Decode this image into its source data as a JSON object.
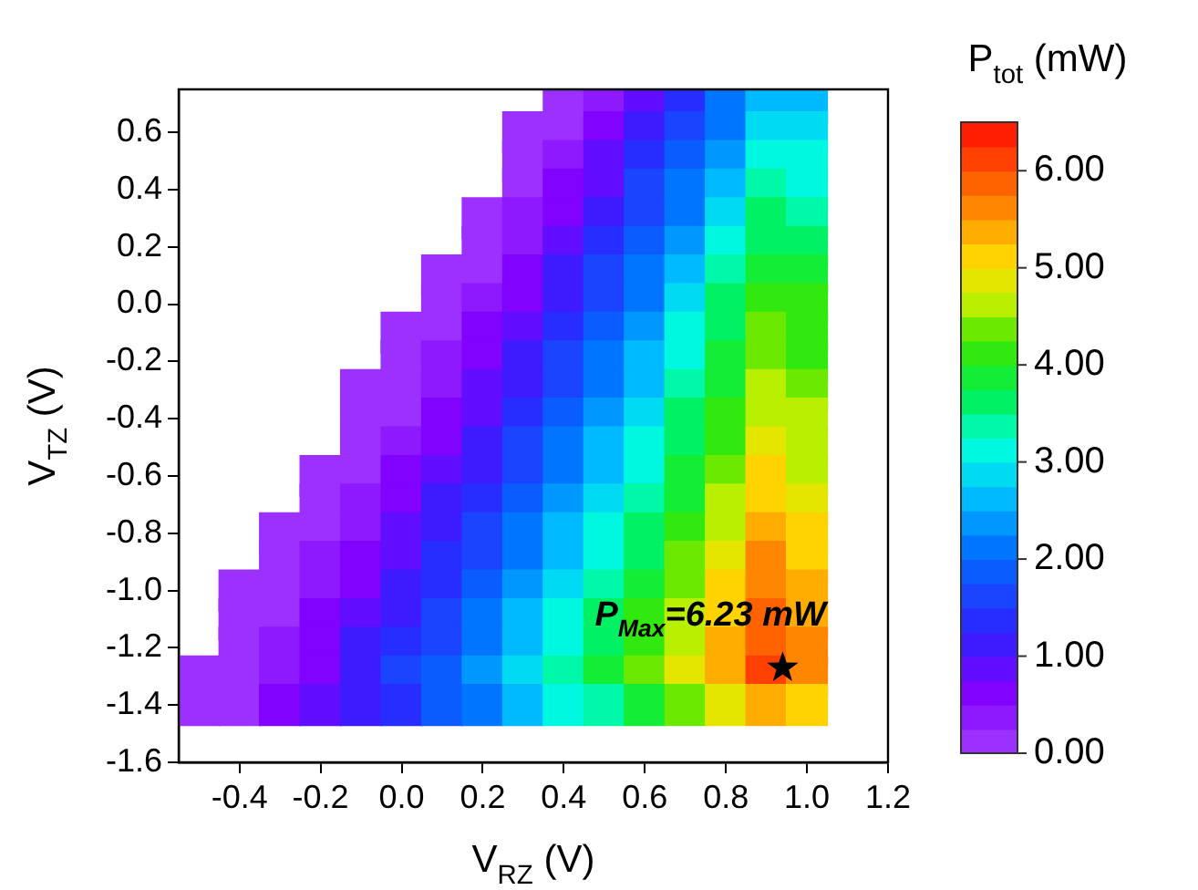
{
  "chart_data": {
    "type": "scatter",
    "xlabel": "V$_{RZ}$ (V)",
    "ylabel": "V$_{TZ}$ (V)",
    "clabel": "P$_{tot}$ (mW)",
    "xlim": [
      -0.55,
      1.2
    ],
    "xticks": [
      -0.4,
      -0.2,
      {
        "value": 0,
        "label": "0.0"
      },
      0.2,
      0.4,
      0.6,
      0.8,
      {
        "value": 1,
        "label": "1.0"
      },
      1.2
    ],
    "ylim": [
      -1.6,
      0.75
    ],
    "yticks": [
      -1.6,
      -1.4,
      -1.2,
      {
        "value": -1,
        "label": "-1.0"
      },
      -0.8,
      -0.6,
      -0.4,
      -0.2,
      {
        "value": 0,
        "label": "0.0"
      },
      0.2,
      0.4,
      0.6
    ],
    "clim": [
      0,
      6.5
    ],
    "cticks": [
      {
        "value": 0,
        "label": "0.00"
      },
      {
        "value": 1,
        "label": "1.00"
      },
      {
        "value": 2,
        "label": "2.00"
      },
      {
        "value": 3,
        "label": "3.00"
      },
      {
        "value": 4,
        "label": "4.00"
      },
      {
        "value": 5,
        "label": "5.00"
      },
      {
        "value": 6,
        "label": "6.00"
      }
    ],
    "grid": false,
    "legend": false,
    "marker": "square",
    "annotations": [
      {
        "text": "P$_{Max}$=6.23 mW",
        "x": 0.94,
        "y": -1.27
      }
    ],
    "series": [
      {
        "x": [
          0.4,
          0.5,
          0.6,
          0.7,
          0.8,
          0.9,
          1.0,
          0.3,
          0.4,
          0.5,
          0.6,
          0.7,
          0.8,
          0.9,
          1.0,
          0.3,
          0.4,
          0.5,
          0.6,
          0.7,
          0.8,
          0.9,
          1.0,
          0.3,
          0.4,
          0.5,
          0.6,
          0.7,
          0.8,
          0.9,
          1.0,
          0.2,
          0.3,
          0.4,
          0.5,
          0.6,
          0.7,
          0.8,
          0.9,
          1.0,
          0.2,
          0.3,
          0.4,
          0.5,
          0.6,
          0.7,
          0.8,
          0.9,
          1.0,
          0.1,
          0.2,
          0.3,
          0.4,
          0.5,
          0.6,
          0.7,
          0.8,
          0.9,
          1.0,
          0.1,
          0.2,
          0.3,
          0.4,
          0.5,
          0.6,
          0.7,
          0.8,
          0.9,
          1.0,
          0.0,
          0.1,
          0.2,
          0.3,
          0.4,
          0.5,
          0.6,
          0.7,
          0.8,
          0.9,
          1.0,
          0.0,
          0.1,
          0.2,
          0.3,
          0.4,
          0.5,
          0.6,
          0.7,
          0.8,
          0.9,
          1.0,
          -0.1,
          0.0,
          0.1,
          0.2,
          0.3,
          0.4,
          0.5,
          0.6,
          0.7,
          0.8,
          0.9,
          1.0,
          -0.1,
          0.0,
          0.1,
          0.2,
          0.3,
          0.4,
          0.5,
          0.6,
          0.7,
          0.8,
          0.9,
          1.0,
          -0.1,
          0.0,
          0.1,
          0.2,
          0.3,
          0.4,
          0.5,
          0.6,
          0.7,
          0.8,
          0.9,
          1.0,
          -0.2,
          -0.1,
          0.0,
          0.1,
          0.2,
          0.3,
          0.4,
          0.5,
          0.6,
          0.7,
          0.8,
          0.9,
          1.0,
          -0.2,
          -0.1,
          0.0,
          0.1,
          0.2,
          0.3,
          0.4,
          0.5,
          0.6,
          0.7,
          0.8,
          0.9,
          1.0,
          -0.3,
          -0.2,
          -0.1,
          0.0,
          0.1,
          0.2,
          0.3,
          0.4,
          0.5,
          0.6,
          0.7,
          0.8,
          0.9,
          1.0,
          -0.3,
          -0.2,
          -0.1,
          0.0,
          0.1,
          0.2,
          0.3,
          0.4,
          0.5,
          0.6,
          0.7,
          0.8,
          0.9,
          1.0,
          -0.4,
          -0.3,
          -0.2,
          -0.1,
          0.0,
          0.1,
          0.2,
          0.3,
          0.4,
          0.5,
          0.6,
          0.7,
          0.8,
          0.9,
          1.0,
          -0.4,
          -0.3,
          -0.2,
          -0.1,
          0.0,
          0.1,
          0.2,
          0.3,
          0.4,
          0.5,
          0.6,
          0.7,
          0.8,
          0.9,
          1.0,
          -0.4,
          -0.3,
          -0.2,
          -0.1,
          0.0,
          0.1,
          0.2,
          0.3,
          0.4,
          0.5,
          0.6,
          0.7,
          0.8,
          0.9,
          1.0,
          -0.5,
          -0.4,
          -0.3,
          -0.2,
          -0.1,
          0.0,
          0.1,
          0.2,
          0.3,
          0.4,
          0.5,
          0.6,
          0.7,
          0.8,
          0.9,
          1.0,
          -0.5,
          -0.4,
          -0.3,
          -0.2,
          -0.1,
          0.0,
          0.1,
          0.2,
          0.3,
          0.4,
          0.5,
          0.6,
          0.7,
          0.8,
          0.9,
          1.0
        ],
        "values": [
          0.7,
          0.7,
          0.7,
          0.7,
          0.7,
          0.7,
          0.7,
          0.6,
          0.6,
          0.6,
          0.6,
          0.6,
          0.6,
          0.6,
          0.6,
          0.5,
          0.5,
          0.5,
          0.5,
          0.5,
          0.5,
          0.5,
          0.5,
          0.4,
          0.4,
          0.4,
          0.4,
          0.4,
          0.4,
          0.4,
          0.4,
          0.3,
          0.3,
          0.3,
          0.3,
          0.3,
          0.3,
          0.3,
          0.3,
          0.3,
          0.2,
          0.2,
          0.2,
          0.2,
          0.2,
          0.2,
          0.2,
          0.2,
          0.2,
          0.1,
          0.1,
          0.1,
          0.1,
          0.1,
          0.1,
          0.1,
          0.1,
          0.1,
          0.1,
          0.0,
          0.0,
          0.0,
          0.0,
          0.0,
          0.0,
          0.0,
          0.0,
          0.0,
          0.0,
          -0.1,
          -0.1,
          -0.1,
          -0.1,
          -0.1,
          -0.1,
          -0.1,
          -0.1,
          -0.1,
          -0.1,
          -0.1,
          -0.2,
          -0.2,
          -0.2,
          -0.2,
          -0.2,
          -0.2,
          -0.2,
          -0.2,
          -0.2,
          -0.2,
          -0.2,
          -0.3,
          -0.3,
          -0.3,
          -0.3,
          -0.3,
          -0.3,
          -0.3,
          -0.3,
          -0.3,
          -0.3,
          -0.3,
          -0.3,
          -0.4,
          -0.4,
          -0.4,
          -0.4,
          -0.4,
          -0.4,
          -0.4,
          -0.4,
          -0.4,
          -0.4,
          -0.4,
          -0.4,
          -0.5,
          -0.5,
          -0.5,
          -0.5,
          -0.5,
          -0.5,
          -0.5,
          -0.5,
          -0.5,
          -0.5,
          -0.5,
          -0.5,
          -0.6,
          -0.6,
          -0.6,
          -0.6,
          -0.6,
          -0.6,
          -0.6,
          -0.6,
          -0.6,
          -0.6,
          -0.6,
          -0.6,
          -0.6,
          -0.7,
          -0.7,
          -0.7,
          -0.7,
          -0.7,
          -0.7,
          -0.7,
          -0.7,
          -0.7,
          -0.7,
          -0.7,
          -0.7,
          -0.7,
          -0.8,
          -0.8,
          -0.8,
          -0.8,
          -0.8,
          -0.8,
          -0.8,
          -0.8,
          -0.8,
          -0.8,
          -0.8,
          -0.8,
          -0.8,
          -0.8,
          -0.9,
          -0.9,
          -0.9,
          -0.9,
          -0.9,
          -0.9,
          -0.9,
          -0.9,
          -0.9,
          -0.9,
          -0.9,
          -0.9,
          -0.9,
          -0.9,
          -1.0,
          -1.0,
          -1.0,
          -1.0,
          -1.0,
          -1.0,
          -1.0,
          -1.0,
          -1.0,
          -1.0,
          -1.0,
          -1.0,
          -1.0,
          -1.0,
          -1.0,
          -1.1,
          -1.1,
          -1.1,
          -1.1,
          -1.1,
          -1.1,
          -1.1,
          -1.1,
          -1.1,
          -1.1,
          -1.1,
          -1.1,
          -1.1,
          -1.1,
          -1.1,
          -1.2,
          -1.2,
          -1.2,
          -1.2,
          -1.2,
          -1.2,
          -1.2,
          -1.2,
          -1.2,
          -1.2,
          -1.2,
          -1.2,
          -1.2,
          -1.2,
          -1.2,
          -1.3,
          -1.3,
          -1.3,
          -1.3,
          -1.3,
          -1.3,
          -1.3,
          -1.3,
          -1.3,
          -1.3,
          -1.3,
          -1.3,
          -1.3,
          -1.3,
          -1.3,
          -1.3,
          -1.4,
          -1.4,
          -1.4,
          -1.4,
          -1.4,
          -1.4,
          -1.4,
          -1.4,
          -1.4,
          -1.4,
          -1.4,
          -1.4,
          -1.4,
          -1.4,
          -1.4,
          -1.4
        ],
        "cvalues": [
          0.1,
          0.4,
          0.9,
          1.4,
          2.0,
          2.7,
          2.7,
          0.0,
          0.2,
          0.6,
          1.1,
          1.6,
          2.2,
          2.9,
          2.9,
          0.0,
          0.3,
          0.8,
          1.3,
          1.8,
          2.4,
          3.1,
          3.1,
          0.2,
          0.5,
          0.9,
          1.5,
          2.0,
          2.7,
          3.3,
          3.2,
          0.0,
          0.3,
          0.7,
          1.1,
          1.6,
          2.2,
          2.9,
          3.5,
          3.4,
          0.1,
          0.4,
          0.8,
          1.3,
          1.8,
          2.4,
          3.1,
          3.7,
          3.6,
          0.0,
          0.2,
          0.6,
          1.0,
          1.5,
          2.0,
          2.6,
          3.3,
          3.9,
          3.8,
          0.1,
          0.4,
          0.7,
          1.2,
          1.7,
          2.2,
          2.8,
          3.5,
          4.1,
          4.0,
          0.0,
          0.2,
          0.5,
          0.9,
          1.4,
          1.9,
          2.4,
          3.0,
          3.6,
          4.3,
          4.1,
          0.0,
          0.3,
          0.6,
          1.1,
          1.5,
          2.0,
          2.6,
          3.2,
          3.8,
          4.4,
          4.2,
          0.0,
          0.1,
          0.4,
          0.8,
          1.2,
          1.7,
          2.2,
          2.7,
          3.3,
          3.9,
          4.6,
          4.4,
          0.0,
          0.2,
          0.6,
          0.9,
          1.4,
          1.9,
          2.4,
          2.9,
          3.5,
          4.1,
          4.7,
          4.5,
          0.1,
          0.4,
          0.7,
          1.1,
          1.5,
          2.0,
          2.5,
          3.0,
          3.6,
          4.2,
          4.8,
          4.6,
          0.0,
          0.2,
          0.5,
          0.8,
          1.2,
          1.7,
          2.2,
          2.7,
          3.2,
          3.8,
          4.4,
          5.0,
          4.7,
          0.1,
          0.3,
          0.6,
          1.0,
          1.4,
          1.8,
          2.3,
          2.8,
          3.4,
          3.9,
          4.5,
          5.1,
          4.9,
          0.0,
          0.2,
          0.4,
          0.8,
          1.1,
          1.5,
          2.0,
          2.5,
          3.0,
          3.5,
          4.1,
          4.7,
          5.3,
          5.0,
          0.0,
          0.3,
          0.5,
          0.9,
          1.3,
          1.7,
          2.2,
          2.6,
          3.2,
          3.7,
          4.3,
          4.9,
          5.5,
          5.1,
          0.0,
          0.1,
          0.4,
          0.7,
          1.0,
          1.4,
          1.9,
          2.3,
          2.8,
          3.3,
          3.9,
          4.4,
          5.0,
          5.6,
          5.3,
          0.0,
          0.2,
          0.5,
          0.8,
          1.2,
          1.6,
          2.0,
          2.5,
          3.0,
          3.5,
          4.0,
          4.6,
          5.2,
          5.8,
          5.4,
          0.1,
          0.3,
          0.6,
          1.0,
          1.3,
          1.7,
          2.2,
          2.6,
          3.1,
          3.6,
          4.2,
          4.7,
          5.3,
          5.9,
          5.5,
          0.0,
          0.2,
          0.4,
          0.7,
          1.1,
          1.5,
          1.9,
          2.3,
          2.8,
          3.3,
          3.8,
          4.3,
          4.8,
          5.4,
          6.0,
          5.5,
          0.0,
          0.2,
          0.5,
          0.8,
          1.1,
          1.4,
          1.8,
          2.2,
          2.6,
          3.0,
          3.4,
          3.9,
          4.4,
          4.9,
          5.4,
          5.0
        ]
      }
    ]
  }
}
